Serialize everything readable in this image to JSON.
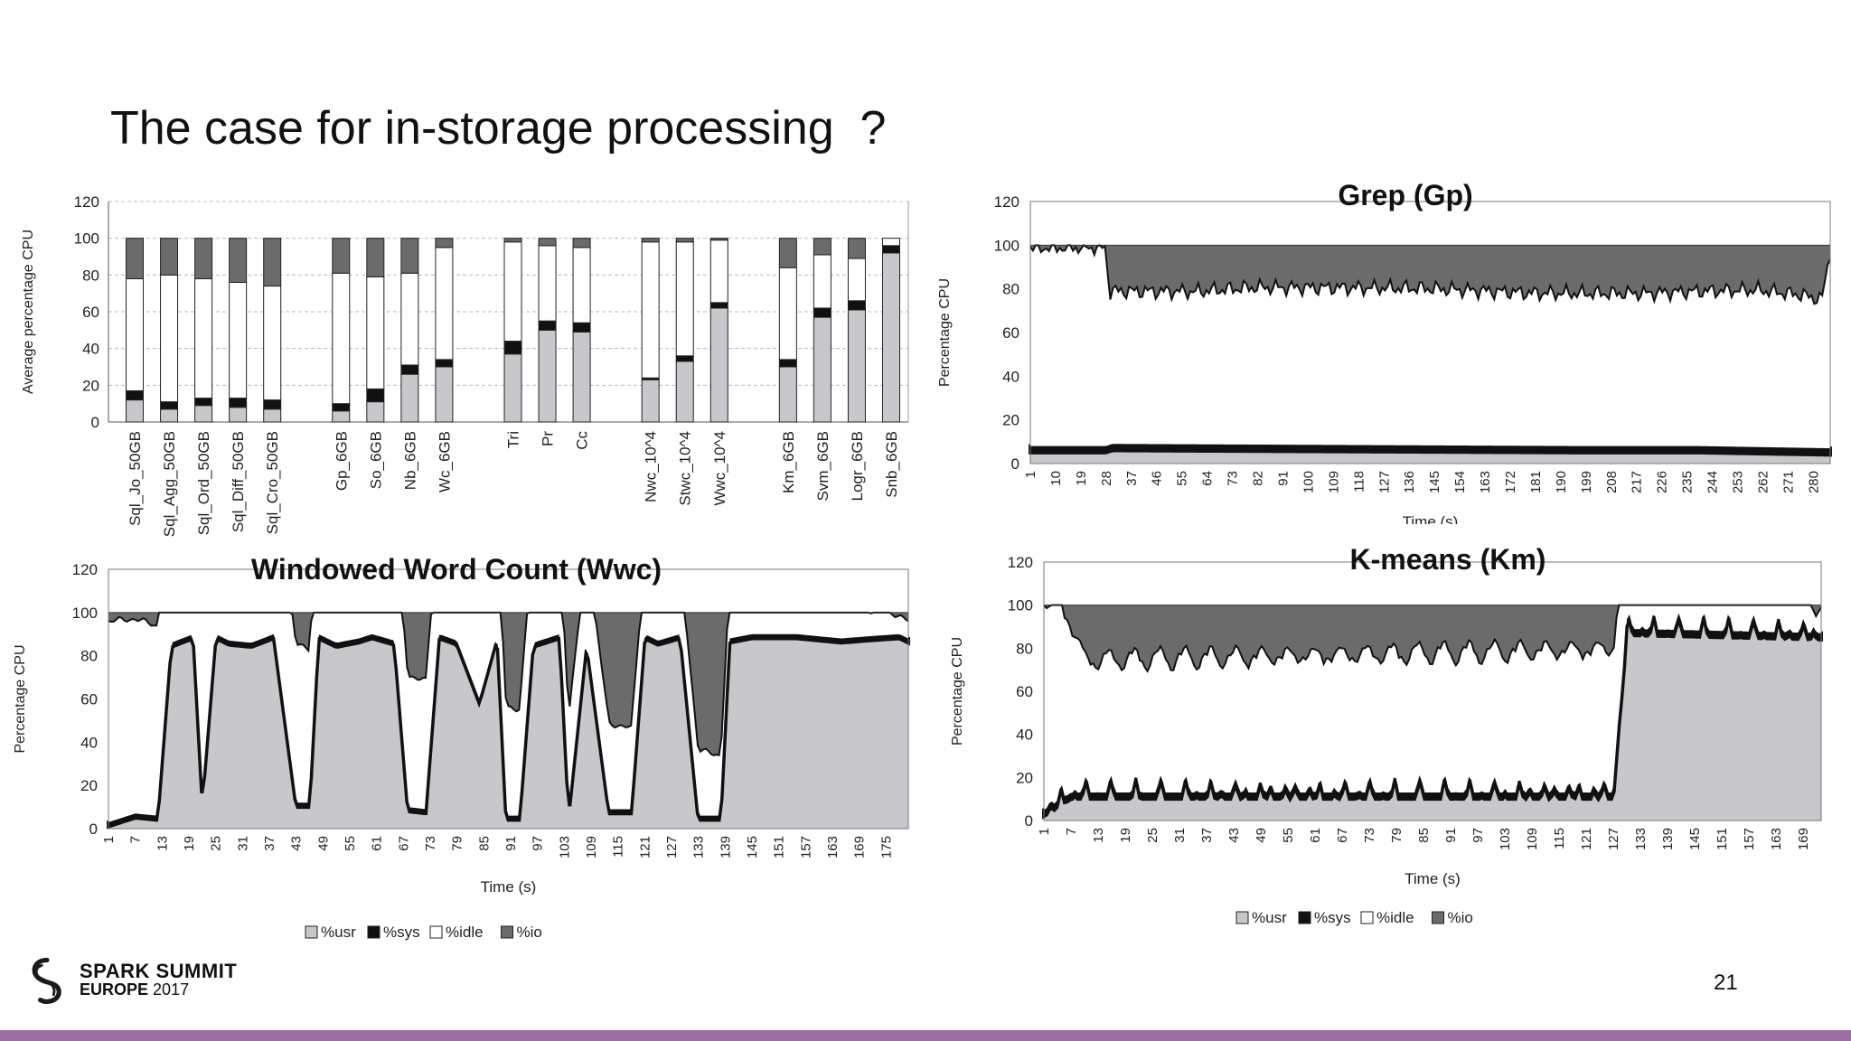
{
  "slide": {
    "title": "The case for in-storage processing  ?",
    "page_number": "21",
    "logo_line1": "SPARK SUMMIT",
    "logo_line2_a": "EUROPE",
    "logo_line2_b": "2017",
    "accent_color": "#9c6fa3"
  },
  "legend": {
    "items": [
      "%usr",
      "%sys",
      "%idle",
      "%io"
    ],
    "colors": [
      "#c8c8cc",
      "#111111",
      "#ffffff",
      "#6b6b6b"
    ]
  },
  "chart_data": [
    {
      "type": "bar",
      "stacked": true,
      "title": "",
      "ylabel": "Average percentage CPU",
      "xlabel": "",
      "ylim": [
        0,
        120
      ],
      "yticks": [
        0,
        20,
        40,
        60,
        80,
        100,
        120
      ],
      "grid": true,
      "categories": [
        "Sql_Jo_50GB",
        "Sql_Agg_50GB",
        "Sql_Ord_50GB",
        "Sql_Diff_50GB",
        "Sql_Cro_50GB",
        "",
        "Gp_6GB",
        "So_6GB",
        "Nb_6GB",
        "Wc_6GB",
        "",
        "Tri",
        "Pr",
        "Cc",
        "",
        "Nwc_10^4",
        "Stwc_10^4",
        "Wwc_10^4",
        "",
        "Km_6GB",
        "Svm_6GB",
        "Logr_6GB",
        "Snb_6GB"
      ],
      "series": [
        {
          "name": "%usr",
          "values": [
            12,
            7,
            9,
            8,
            7,
            null,
            6,
            11,
            26,
            30,
            null,
            37,
            50,
            49,
            null,
            23,
            33,
            62,
            null,
            30,
            57,
            61,
            92
          ]
        },
        {
          "name": "%sys",
          "values": [
            5,
            4,
            4,
            5,
            5,
            null,
            4,
            7,
            5,
            4,
            null,
            7,
            5,
            5,
            null,
            1,
            3,
            3,
            null,
            4,
            5,
            5,
            4
          ]
        },
        {
          "name": "%idle",
          "values": [
            61,
            69,
            65,
            63,
            62,
            null,
            71,
            61,
            50,
            61,
            null,
            54,
            41,
            41,
            null,
            74,
            62,
            34,
            null,
            50,
            29,
            23,
            4
          ]
        },
        {
          "name": "%io",
          "values": [
            22,
            20,
            22,
            24,
            26,
            null,
            19,
            21,
            19,
            5,
            null,
            2,
            4,
            5,
            null,
            2,
            2,
            1,
            null,
            16,
            9,
            11,
            0
          ]
        }
      ]
    },
    {
      "type": "area",
      "stacked": true,
      "title": "Grep (Gp)",
      "ylabel": "Percentage CPU",
      "xlabel": "Time (s)",
      "ylim": [
        0,
        120
      ],
      "yticks": [
        0,
        20,
        40,
        60,
        80,
        100,
        120
      ],
      "xticks": [
        1,
        10,
        19,
        28,
        37,
        46,
        55,
        64,
        73,
        82,
        91,
        100,
        109,
        118,
        127,
        136,
        145,
        154,
        163,
        172,
        181,
        190,
        199,
        208,
        217,
        226,
        235,
        244,
        253,
        262,
        271,
        280
      ],
      "xmax": 286,
      "series": [
        {
          "name": "%usr",
          "x": [
            1,
            28,
            30,
            200,
            240,
            286
          ],
          "values": [
            5,
            5,
            6,
            5,
            5,
            4
          ]
        },
        {
          "name": "%sys",
          "x": [
            1,
            28,
            30,
            200,
            240,
            286
          ],
          "values": [
            3,
            3,
            3,
            3,
            3,
            3
          ]
        },
        {
          "name": "%idle",
          "x": [
            1,
            28,
            29,
            40,
            60,
            80,
            100,
            140,
            180,
            220,
            260,
            276,
            283,
            286
          ],
          "values": [
            91,
            91,
            70,
            70,
            70,
            72,
            72,
            72,
            70,
            70,
            72,
            70,
            68,
            90
          ]
        }
      ]
    },
    {
      "type": "area",
      "stacked": true,
      "title": "Windowed Word Count (Wwc)",
      "ylabel": "Percentage CPU",
      "xlabel": "Time (s)",
      "ylim": [
        0,
        120
      ],
      "yticks": [
        0,
        20,
        40,
        60,
        80,
        100,
        120
      ],
      "xticks": [
        1,
        7,
        13,
        19,
        25,
        31,
        37,
        43,
        49,
        55,
        61,
        67,
        73,
        79,
        85,
        91,
        97,
        103,
        109,
        115,
        121,
        127,
        133,
        139,
        145,
        151,
        157,
        163,
        169,
        175
      ],
      "xmax": 180,
      "series": [
        {
          "name": "%usr",
          "x": [
            1,
            7,
            12,
            15,
            20,
            22,
            25,
            28,
            33,
            38,
            43,
            46,
            48,
            52,
            57,
            60,
            65,
            68,
            72,
            75,
            79,
            84,
            88,
            90,
            93,
            96,
            102,
            104,
            108,
            113,
            118,
            121,
            124,
            129,
            133,
            138,
            140,
            145,
            155,
            165,
            171,
            178,
            180
          ],
          "values": [
            1,
            5,
            4,
            84,
            88,
            12,
            88,
            85,
            84,
            88,
            10,
            10,
            88,
            84,
            86,
            88,
            85,
            8,
            7,
            88,
            85,
            58,
            88,
            4,
            4,
            84,
            88,
            6,
            85,
            7,
            7,
            88,
            85,
            88,
            4,
            4,
            86,
            88,
            88,
            86,
            87,
            88,
            86
          ]
        },
        {
          "name": "%sys",
          "x": [
            1,
            180
          ],
          "values": [
            2,
            2
          ]
        },
        {
          "name": "%idle",
          "x": [
            1,
            180
          ],
          "values": [
            93,
            8
          ]
        }
      ]
    },
    {
      "type": "area",
      "stacked": true,
      "title": "K-means (Km)",
      "ylabel": "Percentage CPU",
      "xlabel": "Time (s)",
      "ylim": [
        0,
        120
      ],
      "yticks": [
        0,
        20,
        40,
        60,
        80,
        100,
        120
      ],
      "xticks": [
        1,
        7,
        13,
        19,
        25,
        31,
        37,
        43,
        49,
        55,
        61,
        67,
        73,
        79,
        85,
        91,
        97,
        103,
        109,
        115,
        121,
        127,
        133,
        139,
        145,
        151,
        157,
        163,
        169
      ],
      "xmax": 173,
      "series": [
        {
          "name": "%usr",
          "x": [
            1,
            5,
            7,
            127,
            130,
            173
          ],
          "values": [
            2,
            7,
            10,
            10,
            86,
            84
          ]
        },
        {
          "name": "%sys",
          "x": [
            1,
            173
          ],
          "values": [
            3,
            3
          ]
        },
        {
          "name": "%idle",
          "x": [
            1,
            5,
            10,
            127,
            173
          ],
          "values": [
            95,
            88,
            60,
            65,
            10
          ]
        }
      ]
    }
  ]
}
